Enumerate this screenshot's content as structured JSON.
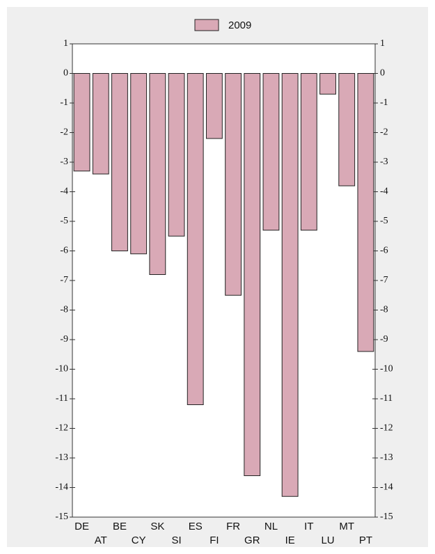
{
  "chart_data": {
    "type": "bar",
    "categories": [
      "DE",
      "AT",
      "BE",
      "CY",
      "SK",
      "SI",
      "ES",
      "FI",
      "FR",
      "GR",
      "NL",
      "IE",
      "IT",
      "LU",
      "MT",
      "PT"
    ],
    "series": [
      {
        "name": "2009",
        "color": "#d9a9b6",
        "values": [
          -3.3,
          -3.4,
          -6.0,
          -6.1,
          -6.8,
          -5.5,
          -11.2,
          -2.2,
          -7.5,
          -13.6,
          -5.3,
          -14.3,
          -5.3,
          -0.7,
          -3.8,
          -9.4
        ]
      }
    ],
    "ylim": [
      -15,
      1
    ],
    "yticks": [
      -15,
      -14,
      -13,
      -12,
      -11,
      -10,
      -9,
      -8,
      -7,
      -6,
      -5,
      -4,
      -3,
      -2,
      -1,
      0,
      1
    ],
    "legend": "top",
    "right_axis": true
  }
}
